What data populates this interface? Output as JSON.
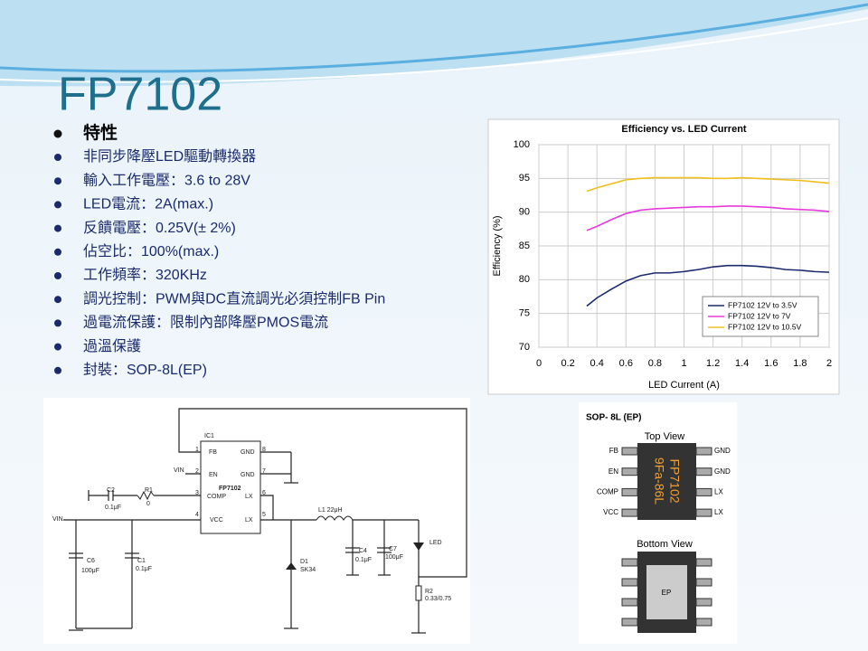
{
  "title": "FP7102",
  "features": {
    "heading": "特性",
    "items": [
      "非同步降壓LED驅動轉換器",
      "輸入工作電壓：3.6 to 28V",
      "LED電流：2A(max.)",
      "反饋電壓：0.25V(± 2%)",
      "佔空比：100%(max.)",
      "工作頻率：320KHz",
      "調光控制：PWM與DC直流調光必須控制FB Pin",
      "過電流保護：限制內部降壓PMOS電流",
      "過溫保護",
      "封裝：SOP-8L(EP)"
    ]
  },
  "chart_data": {
    "type": "line",
    "title": "Efficiency vs. LED Current",
    "xlabel": "LED Current (A)",
    "ylabel": "Efficiency (%)",
    "x": [
      0.33,
      0.4,
      0.5,
      0.6,
      0.7,
      0.8,
      0.9,
      1.0,
      1.1,
      1.2,
      1.3,
      1.4,
      1.5,
      1.6,
      1.7,
      1.8,
      1.9,
      2.0
    ],
    "series": [
      {
        "name": "FP7102 12V to 3.5V",
        "color": "#1a2a6c",
        "values": [
          76.1,
          77.3,
          78.6,
          79.8,
          80.6,
          81.0,
          81.0,
          81.2,
          81.5,
          81.9,
          82.1,
          82.1,
          82.0,
          81.8,
          81.5,
          81.4,
          81.2,
          81.1
        ]
      },
      {
        "name": "FP7102 12V to 7V",
        "color": "#e83adc",
        "values": [
          87.3,
          87.9,
          88.9,
          89.8,
          90.3,
          90.5,
          90.6,
          90.7,
          90.8,
          90.8,
          90.9,
          90.9,
          90.8,
          90.7,
          90.5,
          90.4,
          90.3,
          90.1
        ]
      },
      {
        "name": "FP7102 12V to 10.5V",
        "color": "#f0c020",
        "values": [
          93.1,
          93.6,
          94.2,
          94.8,
          95.0,
          95.1,
          95.1,
          95.1,
          95.1,
          95.0,
          95.0,
          95.1,
          95.0,
          94.9,
          94.8,
          94.7,
          94.5,
          94.3
        ]
      }
    ],
    "xlim": [
      0,
      2
    ],
    "xticks": [
      0,
      0.2,
      0.4,
      0.6,
      0.8,
      1,
      1.2,
      1.4,
      1.6,
      1.8,
      2
    ],
    "ylim": [
      70,
      100
    ],
    "yticks": [
      70,
      75,
      80,
      85,
      90,
      95,
      100
    ],
    "grid": true,
    "legend": "lower right"
  },
  "schematic": {
    "ic": "IC1",
    "part": "FP7102",
    "pins": [
      "FB",
      "GND",
      "EN",
      "GND",
      "COMP",
      "LX",
      "VCC",
      "LX"
    ],
    "pin_numbers": [
      "1",
      "8",
      "2",
      "7",
      "3",
      "6",
      "4",
      "5"
    ],
    "labels": [
      "C2",
      "0.1μF",
      "R1",
      "0",
      "VIN",
      "VIN",
      "C6",
      "100μF",
      "C1",
      "0.1μF",
      "D1",
      "SK34",
      "L1 22μH",
      "C4",
      "0.1μF",
      "C7",
      "100μF",
      "LED",
      "R2",
      "0.33/0.75"
    ]
  },
  "package": {
    "title": "SOP- 8L (EP)",
    "top_view": "Top View",
    "left_pins": [
      "FB",
      "EN",
      "COMP",
      "VCC"
    ],
    "right_pins": [
      "GND",
      "GND",
      "LX",
      "LX"
    ],
    "marking": [
      "FP7102",
      "9Fa-86L"
    ],
    "bottom_view": "Bottom View",
    "pad": "EP"
  }
}
